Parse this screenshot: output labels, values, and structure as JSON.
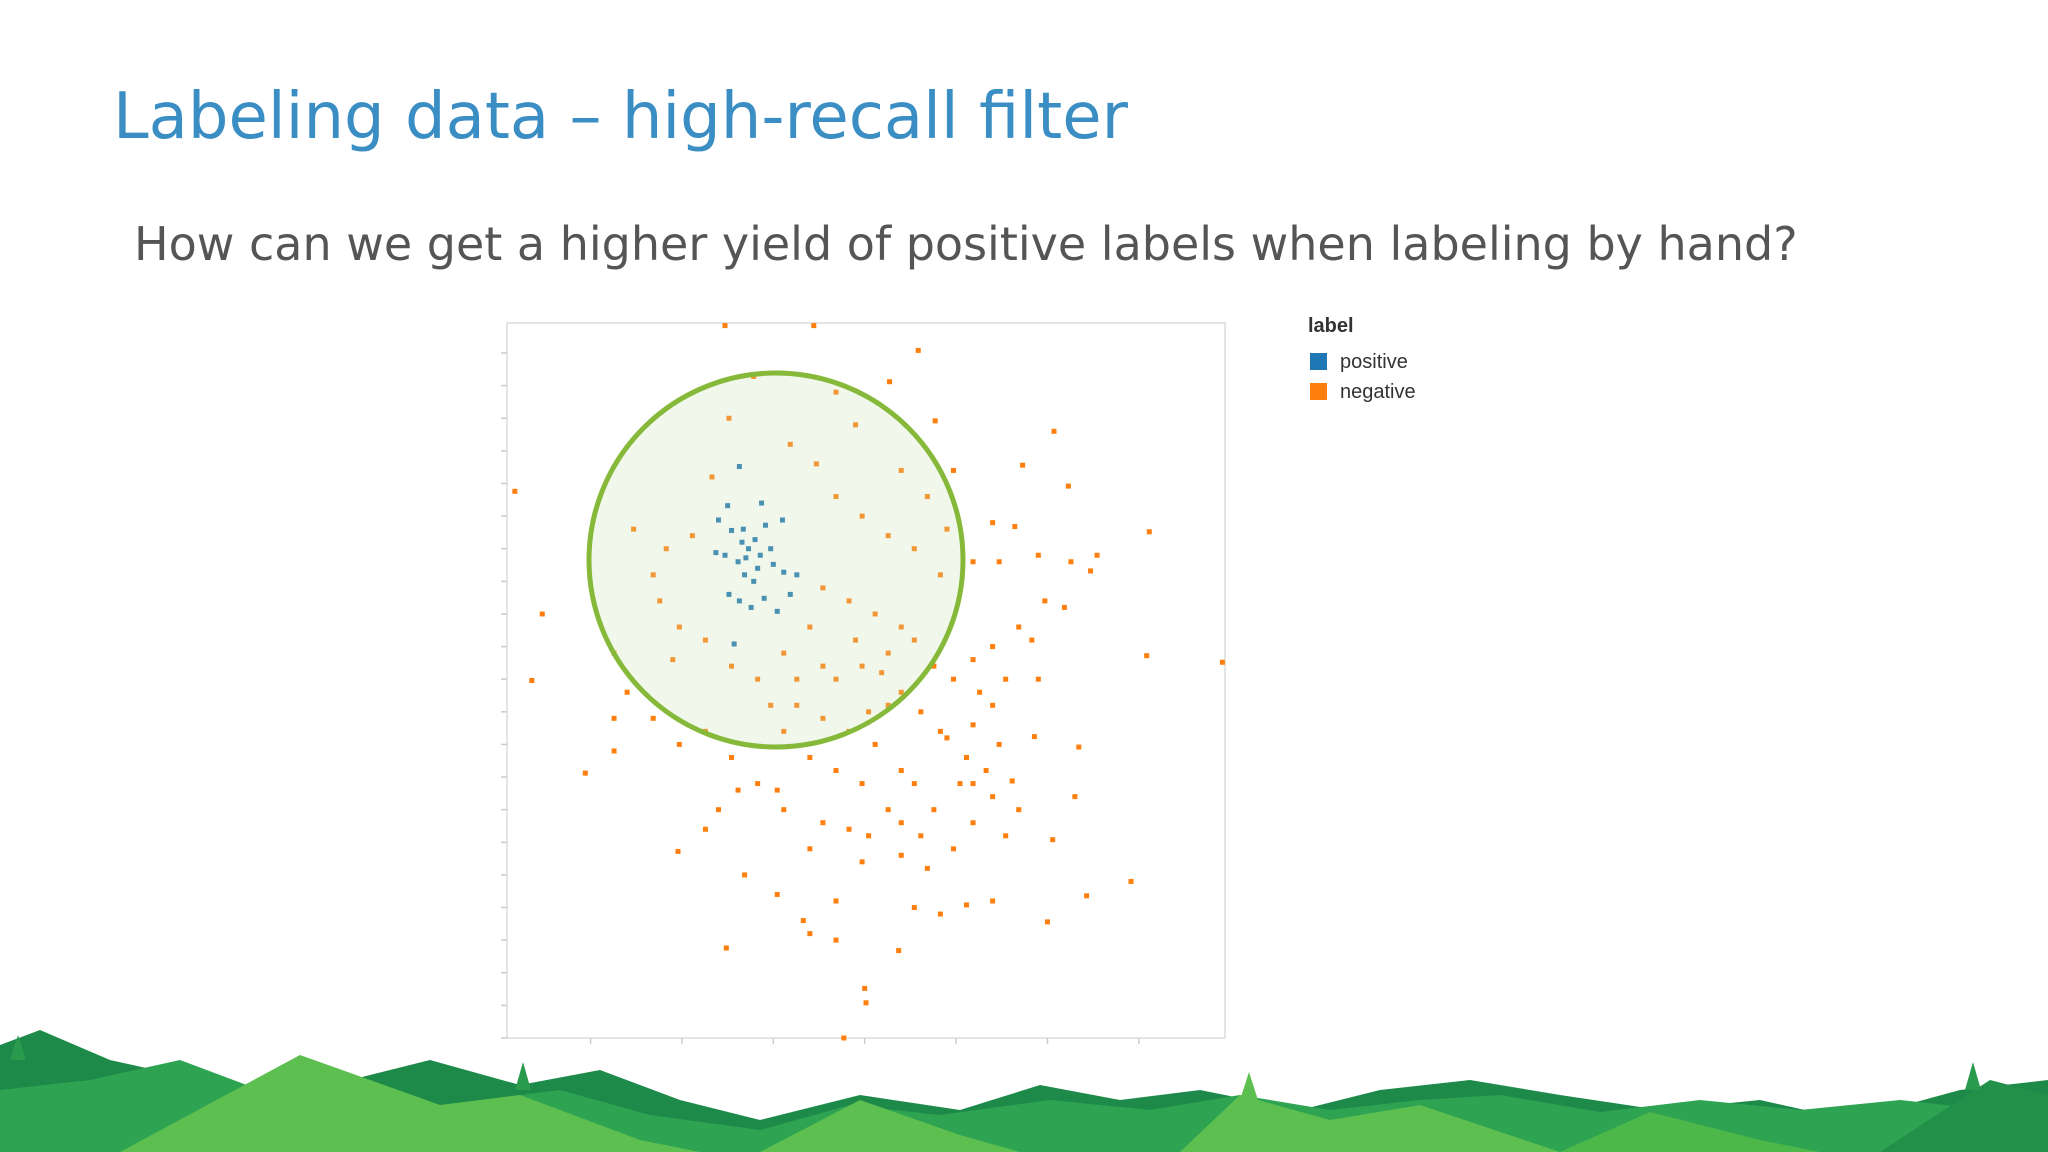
{
  "chart_data": {
    "type": "scatter",
    "title": "Labeling data – high-recall filter",
    "subtitle": "How can we get a higher yield of positive labels when labeling by hand?",
    "legend_title": "label",
    "legend": "right",
    "xlim": [
      0,
      550
    ],
    "ylim": [
      0,
      548
    ],
    "xticks": [
      64,
      134,
      204,
      274,
      344,
      414,
      484
    ],
    "yticks": [
      0,
      25,
      50,
      75,
      100,
      125,
      150,
      175,
      200,
      225,
      250,
      275,
      300,
      325,
      350,
      375,
      400,
      425,
      450,
      475,
      500,
      525
    ],
    "series": [
      {
        "name": "positive",
        "color": "#1f77b4",
        "x": [
          178,
          169,
          162,
          172,
          181,
          190,
          198,
          211,
          185,
          194,
          204,
          212,
          222,
          177,
          167,
          160,
          182,
          189,
          197,
          207,
          187,
          178,
          170,
          174,
          217,
          202,
          183,
          192,
          180,
          195
        ],
        "values": [
          438,
          408,
          397,
          389,
          390,
          382,
          393,
          397,
          375,
          370,
          363,
          357,
          355,
          365,
          370,
          372,
          355,
          350,
          337,
          327,
          330,
          335,
          340,
          302,
          340,
          375,
          368,
          360,
          380,
          410
        ]
      },
      {
        "name": "negative",
        "color": "#ff7f0e",
        "x": [
          167,
          235,
          315,
          293,
          189,
          328,
          419,
          395,
          430,
          6,
          492,
          27,
          19,
          548,
          60,
          131,
          168,
          274,
          275,
          258,
          300,
          414,
          444,
          478,
          490,
          438,
          435,
          418,
          387,
          404,
          372,
          352,
          332,
          312,
          292,
          262,
          232,
          212,
          192,
          172,
          152,
          132,
          112,
          82,
          82,
          152,
          182,
          207,
          227,
          252,
          272,
          302,
          322,
          342,
          357,
          372,
          312,
          332,
          352,
          252,
          232,
          372,
          317,
          302,
          282,
          262,
          242,
          222,
          252,
          272,
          292,
          312,
          302,
          282,
          262,
          242,
          232,
          212,
          192,
          172,
          152,
          132,
          117,
          112,
          122,
          142,
          157,
          170,
          217,
          237,
          252,
          272,
          292,
          312,
          332,
          337,
          322,
          302,
          267,
          252,
          357,
          377,
          407,
          432,
          452,
          447,
          412,
          427,
          392,
          372,
          357,
          402,
          407,
          382,
          362,
          342,
          327,
          302,
          277,
          97,
          82,
          127,
          92,
          342,
          372,
          389,
          267,
          287,
          317,
          337,
          357,
          377,
          367,
          347,
          327,
          302,
          277,
          242,
          207,
          177,
          162,
          272,
          252,
          232,
          212,
          202,
          222,
          242,
          292,
          357,
          382,
          392
        ],
        "values": [
          546,
          546,
          527,
          503,
          507,
          473,
          465,
          439,
          423,
          419,
          388,
          325,
          274,
          288,
          203,
          143,
          69,
          38,
          27,
          0,
          67,
          89,
          109,
          120,
          293,
          223,
          185,
          152,
          197,
          231,
          255,
          215,
          235,
          195,
          175,
          160,
          145,
          175,
          195,
          215,
          235,
          225,
          245,
          245,
          220,
          160,
          125,
          110,
          90,
          105,
          135,
          140,
          130,
          145,
          165,
          185,
          100,
          95,
          102,
          75,
          80,
          105,
          155,
          205,
          225,
          235,
          245,
          255,
          275,
          285,
          295,
          305,
          315,
          325,
          335,
          345,
          315,
          295,
          275,
          285,
          305,
          315,
          335,
          355,
          375,
          385,
          430,
          475,
          455,
          440,
          415,
          400,
          385,
          375,
          355,
          390,
          415,
          435,
          470,
          495,
          365,
          365,
          370,
          365,
          370,
          358,
          335,
          330,
          315,
          300,
          290,
          305,
          275,
          275,
          265,
          275,
          285,
          265,
          250,
          390,
          295,
          290,
          265,
          435,
          395,
          392,
          305,
          280,
          250,
          230,
          240,
          225,
          205,
          195,
          175,
          165,
          155,
          165,
          190,
          190,
          175,
          195,
          205,
          215,
          235,
          255,
          275,
          285,
          255,
          195,
          155,
          175
        ]
      }
    ]
  }
}
